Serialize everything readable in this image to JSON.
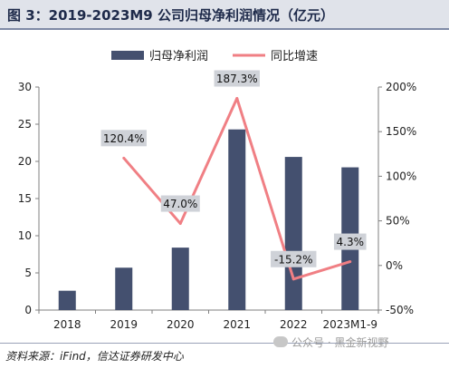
{
  "title": "图 3：2019-2023M9 公司归母净利润情况（亿元）",
  "source": "资料来源：iFind，信达证券研发中心",
  "watermark": "公众号 · 黑金新视野",
  "colors": {
    "bar": "#44506f",
    "line": "#f07f84",
    "axis": "#7f7f7f"
  },
  "chart_data": {
    "type": "bar",
    "categories": [
      "2018",
      "2019",
      "2020",
      "2021",
      "2022",
      "2023M1-9"
    ],
    "series": [
      {
        "name": "归母净利润",
        "type": "bar",
        "axis": "left",
        "values": [
          2.6,
          5.7,
          8.4,
          24.3,
          20.6,
          19.2
        ]
      },
      {
        "name": "同比增速",
        "type": "line",
        "axis": "right",
        "values": [
          null,
          120.4,
          47.0,
          187.3,
          -15.2,
          4.3
        ],
        "labels": [
          "",
          "120.4%",
          "47.0%",
          "187.3%",
          "-15.2%",
          "4.3%"
        ]
      }
    ],
    "y_left": {
      "min": 0,
      "max": 30,
      "ticks": [
        "0",
        "5",
        "10",
        "15",
        "20",
        "25",
        "30"
      ]
    },
    "y_right": {
      "min": -50,
      "max": 200,
      "ticks": [
        "-50%",
        "0%",
        "50%",
        "100%",
        "150%",
        "200%"
      ]
    },
    "legend_position": "top-center",
    "grid": false
  }
}
